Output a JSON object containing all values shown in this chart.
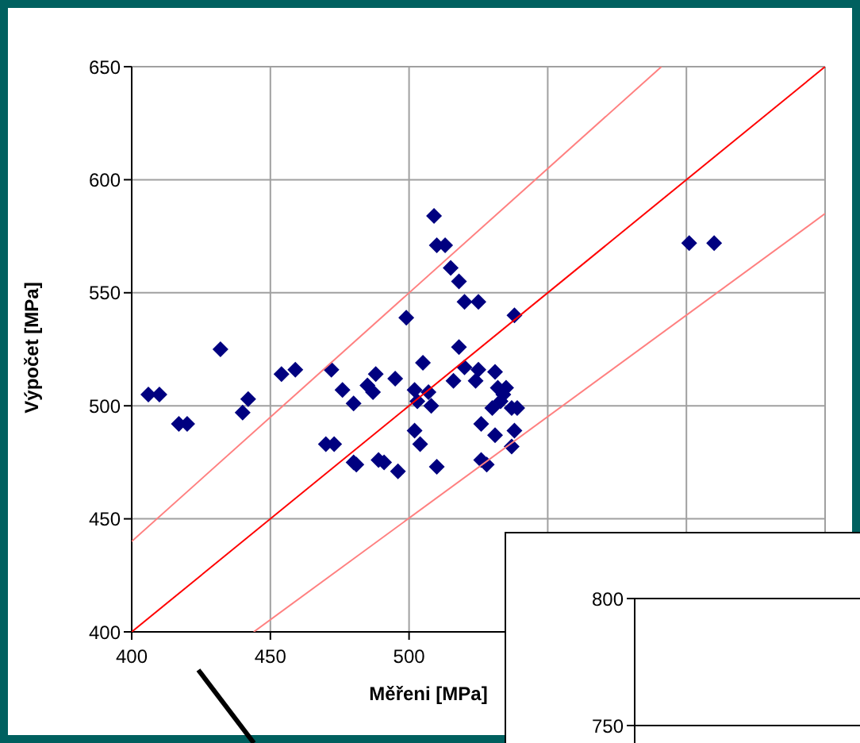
{
  "chart_data": [
    {
      "type": "scatter",
      "xlabel": "Měřeni [MPa]",
      "ylabel": "Výpočet [MPa]",
      "xlim": [
        400,
        650
      ],
      "xticks": [
        400,
        450,
        500,
        {
          "value": 550,
          "label": null
        },
        {
          "value": 600,
          "label": null
        },
        {
          "value": 650,
          "label": null
        }
      ],
      "ylim": [
        400,
        650
      ],
      "yticks": [
        400,
        450,
        500,
        550,
        600,
        650
      ],
      "grid": true,
      "series": [
        {
          "type": "scatter",
          "marker": "diamond",
          "color": "#000080",
          "x": [
            509,
            510,
            513,
            515,
            518,
            520,
            525,
            499,
            538,
            518,
            432,
            601,
            610,
            406,
            410,
            417,
            420,
            440,
            442,
            454,
            459,
            472,
            476,
            480,
            470,
            473,
            480,
            481,
            485,
            488,
            487,
            495,
            489,
            491,
            496,
            505,
            502,
            503,
            507,
            508,
            502,
            504,
            510,
            516,
            520,
            525,
            524,
            531,
            532,
            535,
            534,
            533,
            530,
            537,
            539,
            526,
            531,
            538,
            537,
            526,
            528
          ],
          "values": [
            584,
            571,
            571,
            561,
            555,
            546,
            546,
            539,
            540,
            526,
            525,
            572,
            572,
            505,
            505,
            492,
            492,
            497,
            503,
            514,
            516,
            516,
            507,
            501,
            483,
            483,
            475,
            474,
            509,
            514,
            506,
            512,
            476,
            475,
            471,
            519,
            507,
            502,
            506,
            500,
            489,
            483,
            473,
            511,
            517,
            516,
            511,
            515,
            508,
            508,
            505,
            502,
            499,
            499,
            499,
            492,
            487,
            489,
            482,
            476,
            474
          ]
        },
        {
          "type": "line",
          "color": "#ff0000",
          "x": [
            400,
            650
          ],
          "values": [
            400,
            650
          ]
        },
        {
          "type": "line",
          "color": "#ff8080",
          "x": [
            400,
            591
          ],
          "values": [
            440,
            650
          ]
        },
        {
          "type": "line",
          "color": "#ff8080",
          "x": [
            444,
            650
          ],
          "values": [
            400,
            585
          ]
        }
      ]
    },
    {
      "type": "scatter",
      "categories": [
        null,
        null
      ],
      "values": [
        null,
        null
      ],
      "ylim": [
        700,
        800
      ],
      "yticks": [
        750,
        800
      ],
      "grid": true,
      "tick_labels": "y"
    }
  ]
}
